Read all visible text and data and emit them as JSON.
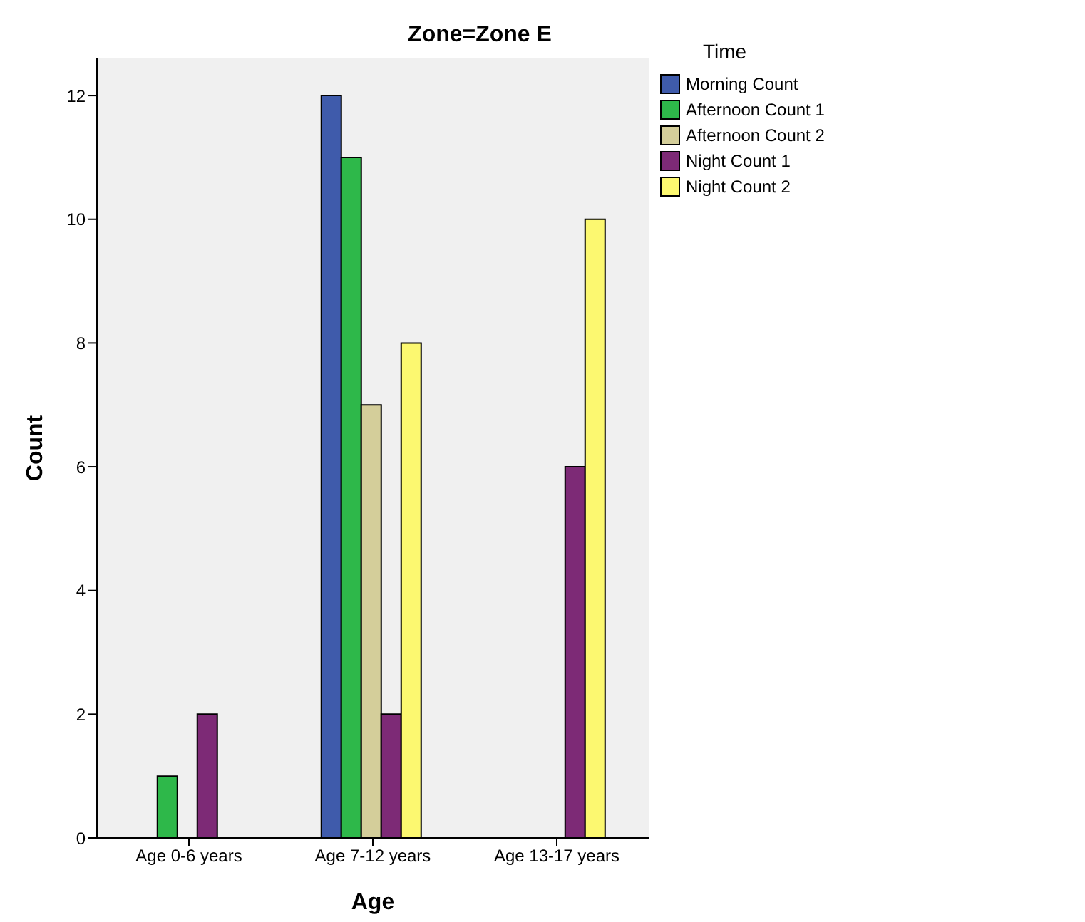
{
  "chart_data": {
    "type": "bar",
    "title": "Zone=Zone E",
    "xlabel": "Age",
    "ylabel": "Count",
    "legend_title": "Time",
    "categories": [
      "Age 0-6 years",
      "Age 7-12 years",
      "Age 13-17 years"
    ],
    "series": [
      {
        "name": "Morning Count",
        "color": "#3f5bab",
        "values": [
          null,
          12,
          null
        ]
      },
      {
        "name": "Afternoon Count 1",
        "color": "#2eb84a",
        "values": [
          1,
          11,
          null
        ]
      },
      {
        "name": "Afternoon Count 2",
        "color": "#d4ce9a",
        "values": [
          null,
          7,
          null
        ]
      },
      {
        "name": "Night Count 1",
        "color": "#7d2a76",
        "values": [
          2,
          2,
          6
        ]
      },
      {
        "name": "Night Count 2",
        "color": "#fcf870",
        "values": [
          null,
          8,
          10
        ]
      }
    ],
    "ylim": [
      0,
      12.6
    ],
    "yticks": [
      0,
      2,
      4,
      6,
      8,
      10,
      12
    ],
    "legend": "top right"
  }
}
